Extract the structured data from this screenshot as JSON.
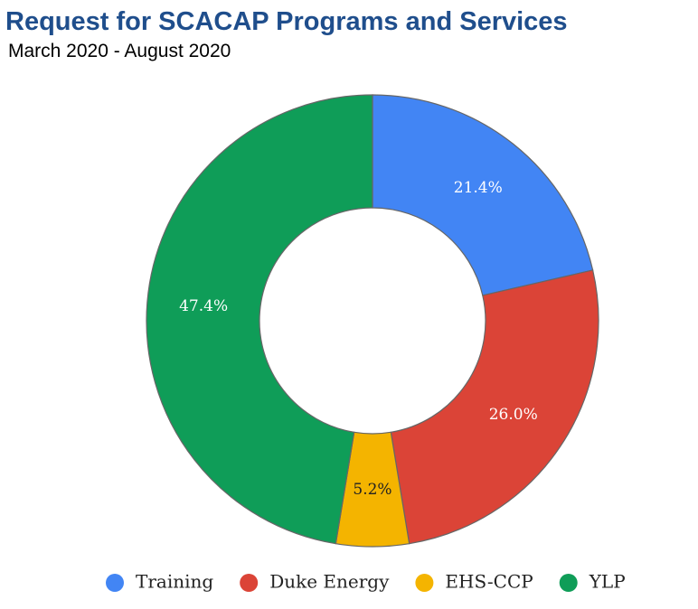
{
  "chart_data": {
    "type": "donut",
    "title": "Request for SCACAP Programs and Services",
    "subtitle": "March 2020 - August 2020",
    "categories": [
      "Training",
      "Duke Energy",
      "EHS-CCP",
      "YLP"
    ],
    "values": [
      21.4,
      26.0,
      5.2,
      47.4
    ],
    "value_labels": [
      "21.4%",
      "26.0%",
      "5.2%",
      "47.4%"
    ],
    "colors": [
      "#4285f4",
      "#db4437",
      "#f4b400",
      "#0f9d58"
    ],
    "legend": "bottom"
  }
}
